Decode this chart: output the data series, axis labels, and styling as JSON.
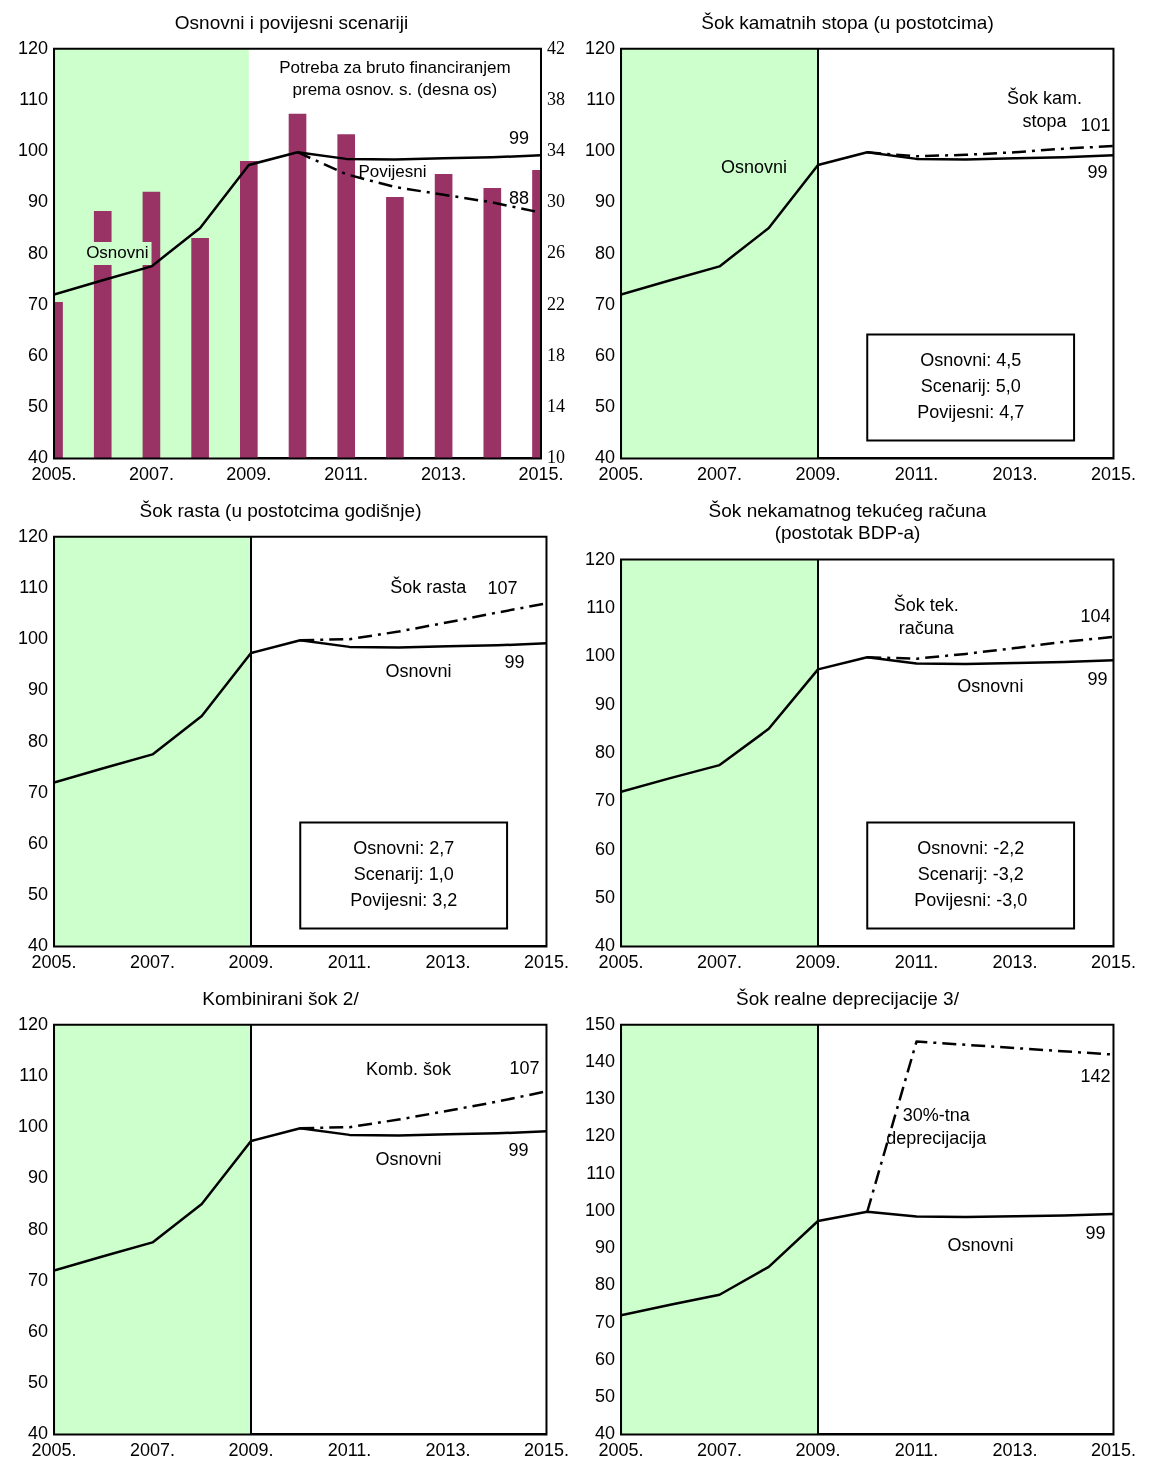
{
  "chart_data": [
    {
      "type": "line",
      "title": "Osnovni i povijesni scenariji",
      "x": [
        2005,
        2006,
        2007,
        2008,
        2009,
        2010,
        2011,
        2012,
        2013,
        2014,
        2015
      ],
      "series": [
        {
          "type": "bar",
          "axis": "y2",
          "name": "Potreba za bruto financiranjem prema osnov. s. (desna os)",
          "color": "#993366",
          "values": [
            22.2,
            29.3,
            30.8,
            27.2,
            33.2,
            36.9,
            35.3,
            30.4,
            32.2,
            31.1,
            32.5
          ]
        },
        {
          "name": "Osnovni",
          "color": "#000000",
          "values": [
            72,
            74.8,
            77.5,
            85,
            97.3,
            99.8,
            98.5,
            98.4,
            98.6,
            98.8,
            99.2
          ],
          "value_labels": [
            null,
            null,
            null,
            null,
            null,
            null,
            null,
            null,
            null,
            null,
            "99"
          ]
        },
        {
          "name": "Povijesni",
          "color": "#000000",
          "line_style": "dashed",
          "x": [
            2010,
            2011,
            2012,
            2013,
            2014,
            2015
          ],
          "values": [
            99.8,
            95.5,
            93,
            91.5,
            90,
            88
          ],
          "value_labels": [
            null,
            null,
            null,
            null,
            null,
            "88"
          ]
        }
      ],
      "ylim": [
        40,
        120
      ],
      "yticks": [
        40,
        50,
        60,
        70,
        80,
        90,
        100,
        110,
        120
      ],
      "y2lim": [
        10,
        42
      ],
      "y2ticks": [
        10,
        14,
        18,
        22,
        26,
        30,
        34,
        38,
        42
      ],
      "xlim": [
        2005,
        2015
      ],
      "xticks": [
        {
          "value": 2005,
          "label": "2005."
        },
        {
          "value": 2007,
          "label": "2007."
        },
        {
          "value": 2009,
          "label": "2009."
        },
        {
          "value": 2011,
          "label": "2011."
        },
        {
          "value": 2013,
          "label": "2013."
        },
        {
          "value": 2015,
          "label": "2015."
        }
      ],
      "bands": [
        {
          "axis": "x",
          "from": 2005,
          "to": 2009,
          "color": "#ccffcc"
        }
      ]
    },
    {
      "type": "line",
      "title": "Šok kamatnih stopa (u postotcima)",
      "x": [
        2005,
        2006,
        2007,
        2008,
        2009,
        2010,
        2011,
        2012,
        2013,
        2014,
        2015
      ],
      "series": [
        {
          "name": "Osnovni",
          "color": "#000000",
          "values": [
            72,
            74.8,
            77.5,
            85,
            97.3,
            99.8,
            98.5,
            98.4,
            98.6,
            98.8,
            99.2
          ],
          "value_labels": [
            null,
            null,
            null,
            null,
            null,
            null,
            null,
            null,
            null,
            null,
            "99"
          ]
        },
        {
          "name": "Šok kam. stopa",
          "color": "#000000",
          "line_style": "dashed",
          "x": [
            2010,
            2011,
            2012,
            2013,
            2014,
            2015
          ],
          "values": [
            99.8,
            99,
            99.3,
            99.8,
            100.5,
            101
          ],
          "value_labels": [
            null,
            null,
            null,
            null,
            null,
            "101"
          ]
        }
      ],
      "ylim": [
        40,
        120
      ],
      "yticks": [
        40,
        50,
        60,
        70,
        80,
        90,
        100,
        110,
        120
      ],
      "xlim": [
        2005,
        2015
      ],
      "xticks": [
        {
          "value": 2005,
          "label": "2005."
        },
        {
          "value": 2007,
          "label": "2007."
        },
        {
          "value": 2009,
          "label": "2009."
        },
        {
          "value": 2011,
          "label": "2011."
        },
        {
          "value": 2013,
          "label": "2013."
        },
        {
          "value": 2015,
          "label": "2015."
        }
      ],
      "bands": [
        {
          "axis": "x",
          "from": 2005,
          "to": 2009,
          "color": "#ccffcc"
        }
      ],
      "ref_lines": [
        {
          "axis": "x",
          "value": 2009,
          "color": "#000000"
        }
      ],
      "annotations": [
        "Osnovni: 4,5\nScenarij: 5,0\nPovijesni: 4,7"
      ]
    },
    {
      "type": "line",
      "title": "Šok rasta (u postotcima godišnje)",
      "x": [
        2005,
        2006,
        2007,
        2008,
        2009,
        2010,
        2011,
        2012,
        2013,
        2014,
        2015
      ],
      "series": [
        {
          "name": "Osnovni",
          "color": "#000000",
          "values": [
            72,
            74.8,
            77.5,
            85,
            97.3,
            99.8,
            98.5,
            98.4,
            98.6,
            98.8,
            99.2
          ],
          "value_labels": [
            null,
            null,
            null,
            null,
            null,
            null,
            null,
            null,
            null,
            null,
            "99"
          ]
        },
        {
          "name": "Šok rasta",
          "color": "#000000",
          "line_style": "dashed",
          "x": [
            2010,
            2011,
            2012,
            2013,
            2014,
            2015
          ],
          "values": [
            99.8,
            100,
            101.5,
            103.3,
            105.2,
            107
          ],
          "value_labels": [
            null,
            null,
            null,
            null,
            null,
            "107"
          ]
        }
      ],
      "ylim": [
        40,
        120
      ],
      "yticks": [
        40,
        50,
        60,
        70,
        80,
        90,
        100,
        110,
        120
      ],
      "xlim": [
        2005,
        2015
      ],
      "xticks": [
        {
          "value": 2005,
          "label": "2005."
        },
        {
          "value": 2007,
          "label": "2007."
        },
        {
          "value": 2009,
          "label": "2009."
        },
        {
          "value": 2011,
          "label": "2011."
        },
        {
          "value": 2013,
          "label": "2013."
        },
        {
          "value": 2015,
          "label": "2015."
        }
      ],
      "bands": [
        {
          "axis": "x",
          "from": 2005,
          "to": 2009,
          "color": "#ccffcc"
        }
      ],
      "ref_lines": [
        {
          "axis": "x",
          "value": 2009,
          "color": "#000000"
        }
      ],
      "annotations": [
        "Osnovni: 2,7\nScenarij: 1,0\nPovijesni: 3,2"
      ]
    },
    {
      "type": "line",
      "title": "Šok nekamatnog tekućeg računa\n(postotak BDP-a)",
      "x": [
        2005,
        2006,
        2007,
        2008,
        2009,
        2010,
        2011,
        2012,
        2013,
        2014,
        2015
      ],
      "series": [
        {
          "name": "Osnovni",
          "color": "#000000",
          "values": [
            72,
            74.8,
            77.5,
            85,
            97.3,
            99.8,
            98.5,
            98.4,
            98.6,
            98.8,
            99.2
          ],
          "value_labels": [
            null,
            null,
            null,
            null,
            null,
            null,
            null,
            null,
            null,
            null,
            "99"
          ]
        },
        {
          "name": "Šok tek. računa",
          "color": "#000000",
          "line_style": "dashed",
          "x": [
            2010,
            2011,
            2012,
            2013,
            2014,
            2015
          ],
          "values": [
            99.8,
            99.5,
            100.5,
            101.7,
            103,
            104
          ],
          "value_labels": [
            null,
            null,
            null,
            null,
            null,
            "104"
          ]
        }
      ],
      "ylim": [
        40,
        120
      ],
      "yticks": [
        40,
        50,
        60,
        70,
        80,
        90,
        100,
        110,
        120
      ],
      "xlim": [
        2005,
        2015
      ],
      "xticks": [
        {
          "value": 2005,
          "label": "2005."
        },
        {
          "value": 2007,
          "label": "2007."
        },
        {
          "value": 2009,
          "label": "2009."
        },
        {
          "value": 2011,
          "label": "2011."
        },
        {
          "value": 2013,
          "label": "2013."
        },
        {
          "value": 2015,
          "label": "2015."
        }
      ],
      "bands": [
        {
          "axis": "x",
          "from": 2005,
          "to": 2009,
          "color": "#ccffcc"
        }
      ],
      "ref_lines": [
        {
          "axis": "x",
          "value": 2009,
          "color": "#000000"
        }
      ],
      "annotations": [
        "Osnovni: -2,2\nScenarij: -3,2\nPovijesni: -3,0"
      ]
    },
    {
      "type": "line",
      "title": "Kombinirani šok 2/",
      "x": [
        2005,
        2006,
        2007,
        2008,
        2009,
        2010,
        2011,
        2012,
        2013,
        2014,
        2015
      ],
      "series": [
        {
          "name": "Osnovni",
          "color": "#000000",
          "values": [
            72,
            74.8,
            77.5,
            85,
            97.3,
            99.8,
            98.5,
            98.4,
            98.6,
            98.8,
            99.2
          ],
          "value_labels": [
            null,
            null,
            null,
            null,
            null,
            null,
            null,
            null,
            null,
            null,
            "99"
          ]
        },
        {
          "name": "Komb. šok",
          "color": "#000000",
          "line_style": "dashed",
          "x": [
            2010,
            2011,
            2012,
            2013,
            2014,
            2015
          ],
          "values": [
            99.8,
            100,
            101.5,
            103.2,
            105,
            107
          ],
          "value_labels": [
            null,
            null,
            null,
            null,
            null,
            "107"
          ]
        }
      ],
      "ylim": [
        40,
        120
      ],
      "yticks": [
        40,
        50,
        60,
        70,
        80,
        90,
        100,
        110,
        120
      ],
      "xlim": [
        2005,
        2015
      ],
      "xticks": [
        {
          "value": 2005,
          "label": "2005."
        },
        {
          "value": 2007,
          "label": "2007."
        },
        {
          "value": 2009,
          "label": "2009."
        },
        {
          "value": 2011,
          "label": "2011."
        },
        {
          "value": 2013,
          "label": "2013."
        },
        {
          "value": 2015,
          "label": "2015."
        }
      ],
      "bands": [
        {
          "axis": "x",
          "from": 2005,
          "to": 2009,
          "color": "#ccffcc"
        }
      ],
      "ref_lines": [
        {
          "axis": "x",
          "value": 2009,
          "color": "#000000"
        }
      ]
    },
    {
      "type": "line",
      "title": "Šok realne deprecijacije 3/",
      "x": [
        2005,
        2006,
        2007,
        2008,
        2009,
        2010,
        2011,
        2012,
        2013,
        2014,
        2015
      ],
      "series": [
        {
          "name": "Osnovni",
          "color": "#000000",
          "values": [
            72,
            74.8,
            77.5,
            85,
            97.3,
            99.8,
            98.5,
            98.4,
            98.6,
            98.8,
            99.2
          ],
          "value_labels": [
            null,
            null,
            null,
            null,
            null,
            null,
            null,
            null,
            null,
            null,
            "99"
          ]
        },
        {
          "name": "30%-tna deprecijacija",
          "color": "#000000",
          "line_style": "dashed",
          "x": [
            2010,
            2011,
            2015
          ],
          "values": [
            99.8,
            145.5,
            142
          ],
          "value_labels": [
            null,
            null,
            "142"
          ]
        }
      ],
      "ylim": [
        40,
        150
      ],
      "yticks": [
        40,
        50,
        60,
        70,
        80,
        90,
        100,
        110,
        120,
        130,
        140,
        150
      ],
      "xlim": [
        2005,
        2015
      ],
      "xticks": [
        {
          "value": 2005,
          "label": "2005."
        },
        {
          "value": 2007,
          "label": "2007."
        },
        {
          "value": 2009,
          "label": "2009."
        },
        {
          "value": 2011,
          "label": "2011."
        },
        {
          "value": 2013,
          "label": "2013."
        },
        {
          "value": 2015,
          "label": "2015."
        }
      ],
      "bands": [
        {
          "axis": "x",
          "from": 2005,
          "to": 2009,
          "color": "#ccffcc"
        }
      ],
      "ref_lines": [
        {
          "axis": "x",
          "value": 2009,
          "color": "#000000"
        }
      ]
    }
  ]
}
